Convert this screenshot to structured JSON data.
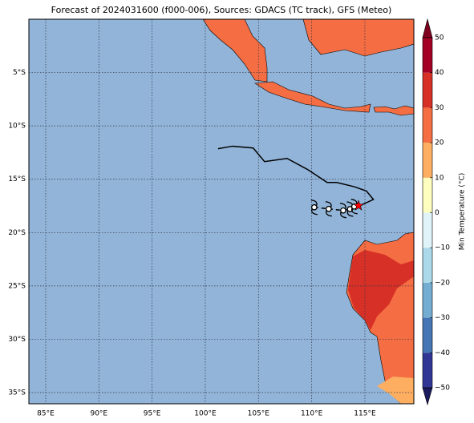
{
  "chart_data": {
    "type": "map",
    "title": "Forecast of 2024031600 (f000-006), Sources: GDACS (TC track), GFS (Meteo)",
    "xlim": [
      83.42,
      119.6
    ],
    "ylim": [
      -36.05,
      0
    ],
    "xticks": [
      {
        "value": 85,
        "label": "85°E"
      },
      {
        "value": 90,
        "label": "90°E"
      },
      {
        "value": 95,
        "label": "95°E"
      },
      {
        "value": 100,
        "label": "100°E"
      },
      {
        "value": 105,
        "label": "105°E"
      },
      {
        "value": 110,
        "label": "110°E"
      },
      {
        "value": 115,
        "label": "115°E"
      }
    ],
    "yticks": [
      {
        "value": -5,
        "label": "5°S"
      },
      {
        "value": -10,
        "label": "10°S"
      },
      {
        "value": -15,
        "label": "15°S"
      },
      {
        "value": -20,
        "label": "20°S"
      },
      {
        "value": -25,
        "label": "25°S"
      },
      {
        "value": -30,
        "label": "30°S"
      },
      {
        "value": -35,
        "label": "35°S"
      }
    ],
    "grid": true,
    "ocean_color": "#91b4d8",
    "track": {
      "color": "#000000",
      "lon": [
        101.2,
        102.56,
        104.5,
        105.57,
        107.68,
        109.64,
        111.45,
        112.35,
        114.0,
        115.14,
        115.8,
        114.47
      ],
      "lat": [
        -12.14,
        -11.9,
        -12.07,
        -13.35,
        -13.05,
        -14.1,
        -15.3,
        -15.3,
        -15.7,
        -16.1,
        -16.9,
        -17.5
      ]
    },
    "forecast_points": {
      "lon": [
        110.24,
        111.6,
        112.96,
        113.6,
        114.0
      ],
      "lat": [
        -17.63,
        -17.78,
        -17.93,
        -17.8,
        -17.56
      ]
    },
    "current_position": {
      "lon": 114.4,
      "lat": -17.48,
      "color": "#ff0000"
    },
    "colorbar": {
      "label": "Min Temperature (°C)",
      "levels": [
        -50,
        -40,
        -30,
        -20,
        -10,
        0,
        10,
        20,
        30,
        40,
        50
      ],
      "colors": [
        "#313695",
        "#4575b4",
        "#74add1",
        "#abd9e9",
        "#e0f3f8",
        "#ffffbf",
        "#fdae61",
        "#f46d43",
        "#d73027",
        "#a50026"
      ],
      "under_color": "#1a1a5e",
      "over_color": "#800020",
      "ticks": [
        {
          "value": -50,
          "label": "−50"
        },
        {
          "value": -40,
          "label": "−40"
        },
        {
          "value": -30,
          "label": "−30"
        },
        {
          "value": -20,
          "label": "−20"
        },
        {
          "value": -10,
          "label": "−10"
        },
        0,
        10,
        20,
        30,
        40,
        50
      ]
    }
  }
}
